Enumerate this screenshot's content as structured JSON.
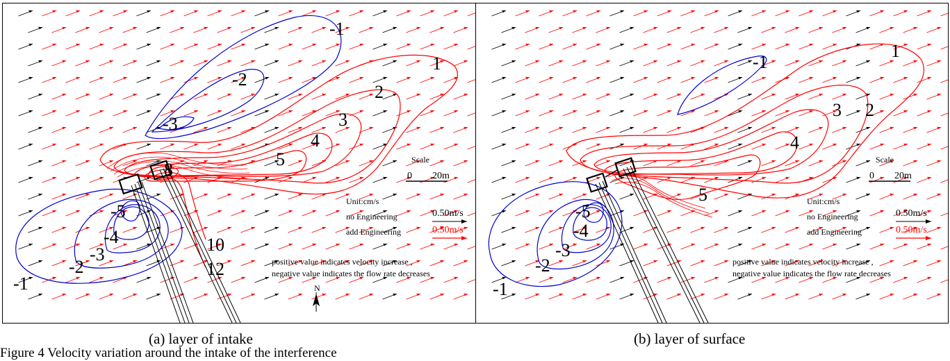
{
  "panels": [
    {
      "id": "a",
      "caption": "(a) layer of intake",
      "scale": {
        "title": "Scale",
        "zero": "0",
        "length": "20m"
      },
      "unit": "Unit:cm/s",
      "legend": {
        "no_engineering": "no Engineering",
        "add_engineering": "add Engineering",
        "speed_black": "0.50m/s",
        "speed_red": "0.50m/s"
      },
      "note_line1": "positive value indicates velocity increase ,",
      "note_line2": "negative  value indicates the flow rate decreases",
      "north": "N",
      "contour_labels": [
        "-1",
        "-2",
        "-3",
        "1",
        "2",
        "3",
        "4",
        "5",
        "8",
        "-5",
        "-4",
        "-3",
        "-2",
        "-1",
        "10",
        "12"
      ]
    },
    {
      "id": "b",
      "caption": "(b) layer of surface",
      "scale": {
        "title": "Scale",
        "zero": "0",
        "length": "20m"
      },
      "unit": "Unit:cm/s",
      "legend": {
        "no_engineering": "no Engineering",
        "add_engineering": "add Engineering",
        "speed_black": "0.50m/s",
        "speed_red": "0.50m/s"
      },
      "note_line1": "positive value indicates velocity increase ,",
      "note_line2": "negative  value indicates the flow rate decreases",
      "contour_labels": [
        "-1",
        "1",
        "2",
        "3",
        "4",
        "5",
        "-5",
        "-4",
        "-3",
        "-2",
        "-1"
      ]
    }
  ],
  "figure_caption_fragment": "Figure 4  Velocity variation around the intake of the interference",
  "colors": {
    "positive": "#ff0000",
    "negative": "#0000cc",
    "ink": "#000000"
  }
}
